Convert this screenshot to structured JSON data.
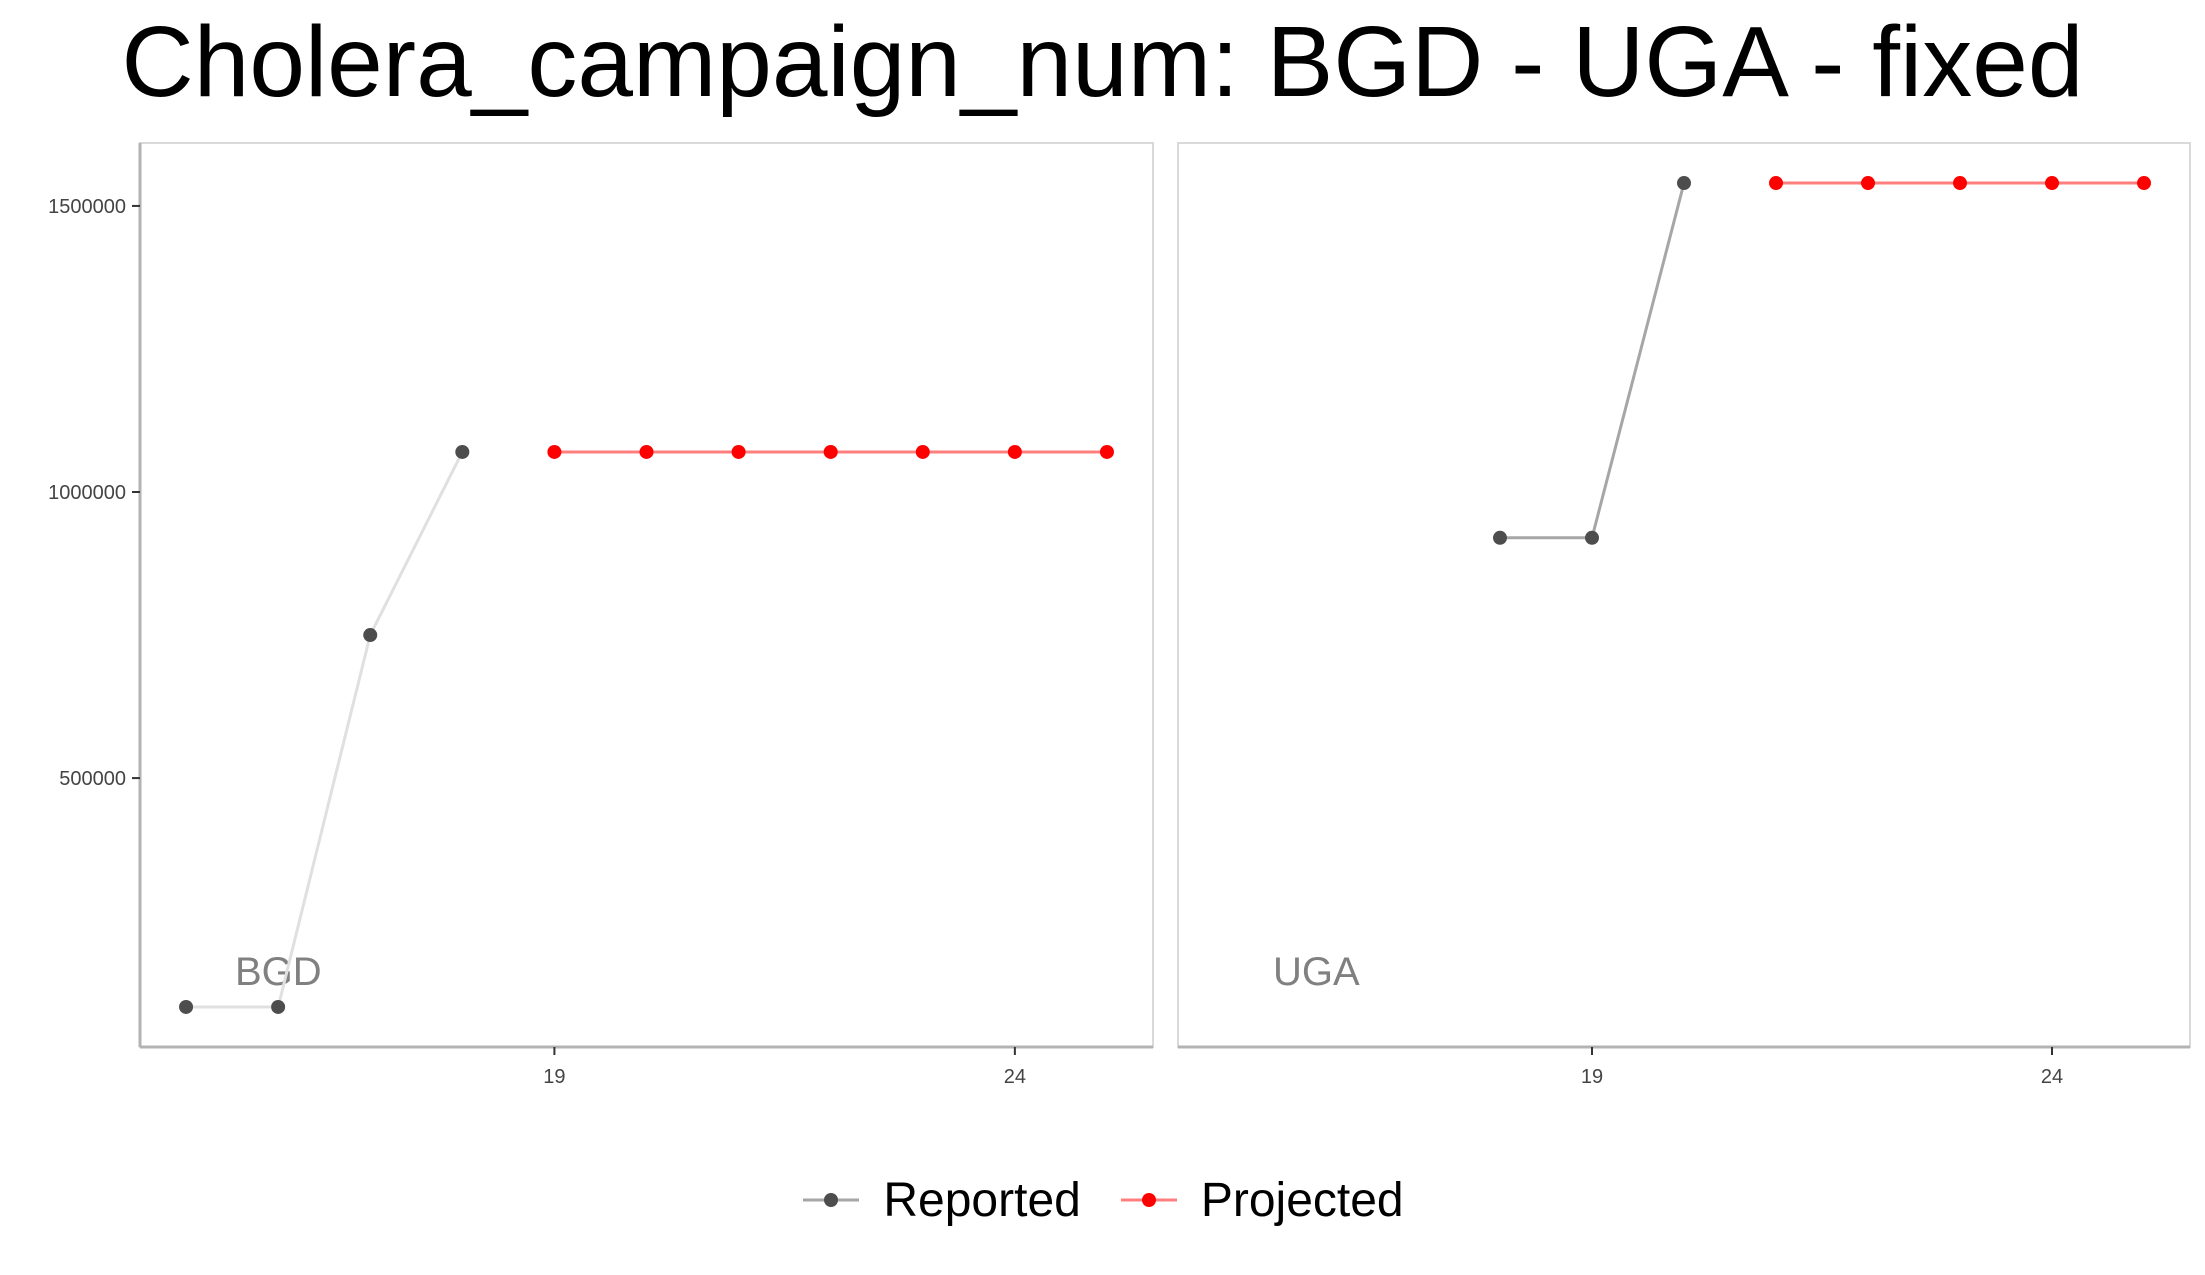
{
  "chart_data": {
    "type": "line",
    "title": "Cholera_campaign_num: BGD - UGA - fixed",
    "xlabel": "",
    "ylabel": "",
    "x_ticks": [
      19,
      24
    ],
    "y_ticks": [
      500000,
      1000000,
      1500000
    ],
    "y_tick_labels": [
      "500000",
      "1000000",
      "1500000"
    ],
    "xlim": [
      14.5,
      25.5
    ],
    "ylim": [
      30000,
      1610000
    ],
    "grid": false,
    "legend_position": "bottom",
    "legend": [
      {
        "label": "Reported",
        "color": "#4d4d4d",
        "line_color": "#a6a6a6"
      },
      {
        "label": "Projected",
        "color": "#ff0000",
        "line_color": "#ff7f7f"
      }
    ],
    "panels": [
      {
        "label": "BGD",
        "series": [
          {
            "name": "Reported",
            "color": "#4d4d4d",
            "line_color": "#e0e0e0",
            "points": [
              [
                15,
                100000
              ],
              [
                16,
                100000
              ],
              [
                17,
                750000
              ],
              [
                18,
                1070000
              ]
            ]
          },
          {
            "name": "Projected",
            "color": "#ff0000",
            "line_color": "#ff7f7f",
            "points": [
              [
                19,
                1070000
              ],
              [
                20,
                1070000
              ],
              [
                21,
                1070000
              ],
              [
                22,
                1070000
              ],
              [
                23,
                1070000
              ],
              [
                24,
                1070000
              ],
              [
                25,
                1070000
              ]
            ]
          }
        ]
      },
      {
        "label": "UGA",
        "series": [
          {
            "name": "Reported",
            "color": "#4d4d4d",
            "line_color": "#a6a6a6",
            "points": [
              [
                18,
                920000
              ],
              [
                19,
                920000
              ],
              [
                20,
                1540000
              ]
            ]
          },
          {
            "name": "Projected",
            "color": "#ff0000",
            "line_color": "#ff7f7f",
            "points": [
              [
                21,
                1540000
              ],
              [
                22,
                1540000
              ],
              [
                23,
                1540000
              ],
              [
                24,
                1540000
              ],
              [
                25,
                1540000
              ]
            ]
          }
        ]
      }
    ]
  }
}
